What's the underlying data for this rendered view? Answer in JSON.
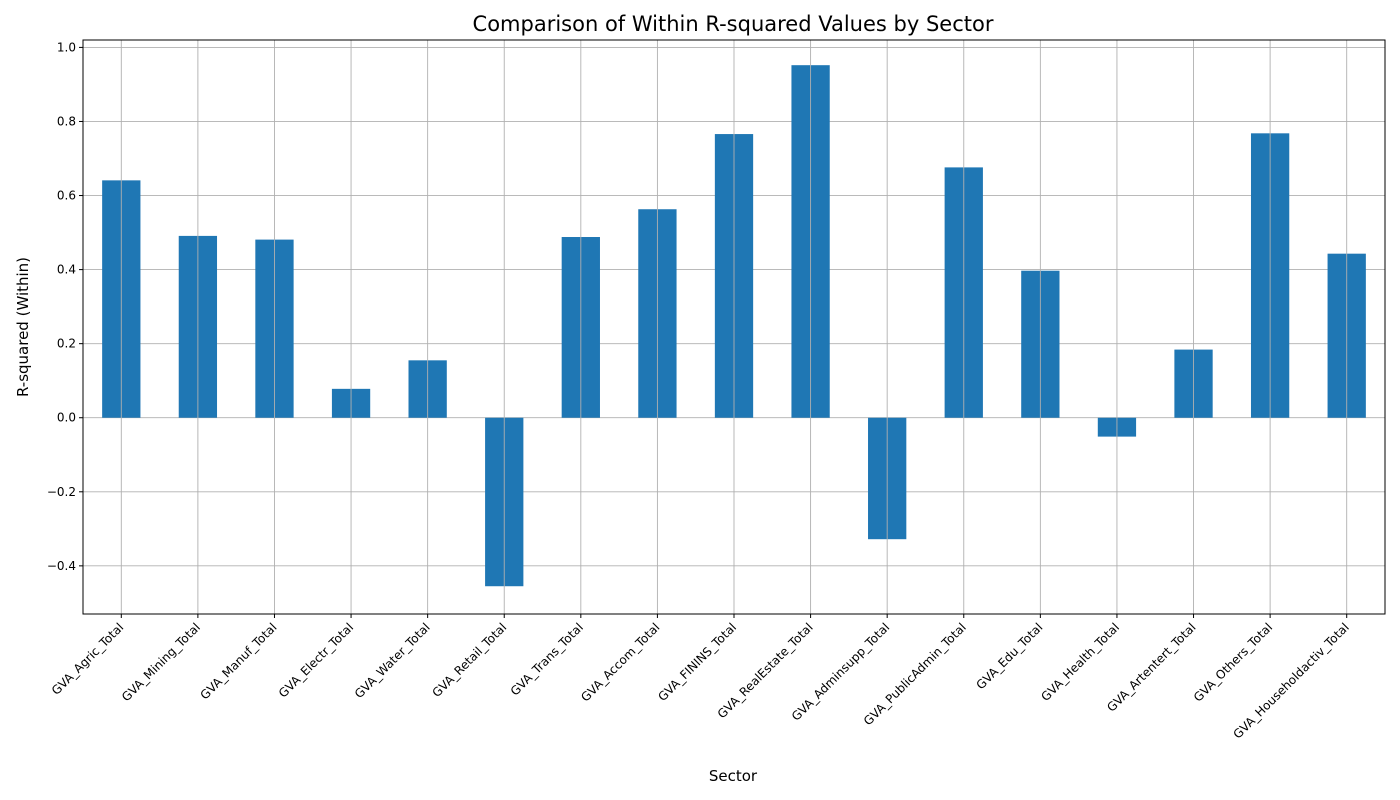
{
  "chart_data": {
    "type": "bar",
    "title": "Comparison of Within R-squared Values by Sector",
    "xlabel": "Sector",
    "ylabel": "R-squared (Within)",
    "categories": [
      "GVA_Agric_Total",
      "GVA_Mining_Total",
      "GVA_Manuf_Total",
      "GVA_Electr_Total",
      "GVA_Water_Total",
      "GVA_Retail_Total",
      "GVA_Trans_Total",
      "GVA_Accom_Total",
      "GVA_FININS_Total",
      "GVA_RealEstate_Total",
      "GVA_Adminsupp_Total",
      "GVA_PublicAdmin_Total",
      "GVA_Edu_Total",
      "GVA_Health_Total",
      "GVA_Artentert_Total",
      "GVA_Others_Total",
      "GVA_Householdactiv_Total"
    ],
    "values": [
      0.641,
      0.491,
      0.481,
      0.078,
      0.155,
      -0.455,
      0.488,
      0.563,
      0.766,
      0.952,
      -0.328,
      0.676,
      0.397,
      -0.051,
      0.184,
      0.768,
      0.443
    ],
    "ylim": [
      -0.53,
      1.02
    ],
    "yticks": [
      -0.4,
      -0.2,
      0.0,
      0.2,
      0.4,
      0.6,
      0.8,
      1.0
    ],
    "ytick_labels": [
      "−0.4",
      "−0.2",
      "0.0",
      "0.2",
      "0.4",
      "0.6",
      "0.8",
      "1.0"
    ],
    "grid": true,
    "bar_color": "#1f77b4"
  }
}
